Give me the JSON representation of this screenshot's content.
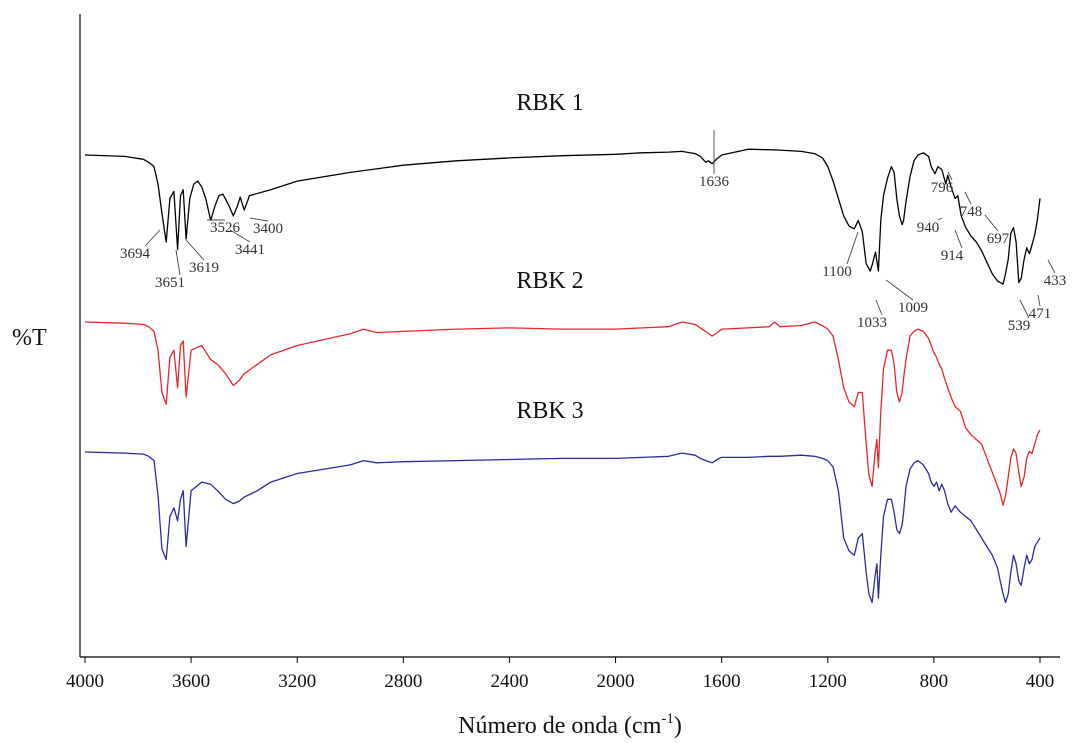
{
  "chart_data": {
    "type": "line",
    "title": "",
    "xlabel": "Número de onda (cm",
    "xlabel_sup": "-1",
    "xlabel_end": ")",
    "ylabel": "%T",
    "xlim": [
      4000,
      400
    ],
    "x_reversed": true,
    "grid": false,
    "x_ticks": [
      4000,
      3600,
      3200,
      2800,
      2400,
      2000,
      1600,
      1200,
      800,
      400
    ],
    "series": [
      {
        "name": "RBK 1",
        "color": "#000000",
        "x": [
          4000,
          3850,
          3780,
          3760,
          3740,
          3725,
          3710,
          3694,
          3680,
          3665,
          3651,
          3640,
          3630,
          3619,
          3605,
          3590,
          3575,
          3560,
          3545,
          3526,
          3510,
          3495,
          3480,
          3460,
          3441,
          3425,
          3415,
          3400,
          3380,
          3300,
          3200,
          3000,
          2800,
          2600,
          2400,
          2200,
          2000,
          1900,
          1800,
          1750,
          1700,
          1680,
          1660,
          1650,
          1636,
          1620,
          1600,
          1500,
          1400,
          1300,
          1250,
          1220,
          1200,
          1180,
          1160,
          1140,
          1120,
          1110,
          1100,
          1085,
          1070,
          1055,
          1040,
          1033,
          1020,
          1009,
          1000,
          990,
          975,
          960,
          950,
          940,
          930,
          920,
          914,
          905,
          890,
          875,
          860,
          840,
          820,
          810,
          796,
          785,
          770,
          755,
          748,
          735,
          720,
          710,
          697,
          680,
          660,
          640,
          620,
          600,
          580,
          560,
          550,
          539,
          530,
          520,
          510,
          500,
          490,
          480,
          471,
          460,
          450,
          440,
          433,
          420,
          410,
          400
        ],
        "y": [
          100,
          99,
          97,
          95,
          92,
          80,
          60,
          40,
          70,
          75,
          35,
          72,
          76,
          42,
          70,
          80,
          82,
          78,
          70,
          55,
          65,
          72,
          73,
          66,
          58,
          65,
          71,
          62,
          72,
          76,
          82,
          88,
          93,
          96,
          98,
          99.5,
          100.5,
          101.5,
          102,
          102.5,
          101,
          99,
          95,
          96,
          94,
          97,
          100,
          104,
          103.5,
          102.5,
          101,
          98,
          92,
          82,
          70,
          58,
          51,
          50,
          49,
          55,
          47,
          25,
          20,
          24,
          33,
          20,
          55,
          72,
          84,
          92,
          88,
          70,
          58,
          52,
          55,
          68,
          85,
          96,
          100,
          101.5,
          99,
          92,
          87,
          92,
          90,
          80,
          86,
          78,
          70,
          72,
          58,
          50,
          44,
          40,
          34,
          26,
          18,
          13,
          12,
          11,
          18,
          28,
          46,
          50,
          40,
          12,
          15,
          28,
          36,
          32,
          36,
          45,
          55,
          70
        ]
      },
      {
        "name": "RBK 2",
        "color": "#e8262a",
        "x": [
          4000,
          3850,
          3780,
          3760,
          3740,
          3725,
          3710,
          3694,
          3680,
          3665,
          3651,
          3640,
          3630,
          3619,
          3600,
          3560,
          3526,
          3500,
          3470,
          3441,
          3420,
          3400,
          3350,
          3300,
          3200,
          3000,
          2950,
          2900,
          2800,
          2600,
          2400,
          2200,
          2000,
          1900,
          1800,
          1750,
          1700,
          1680,
          1660,
          1636,
          1610,
          1600,
          1500,
          1420,
          1400,
          1380,
          1300,
          1250,
          1220,
          1200,
          1180,
          1160,
          1140,
          1120,
          1100,
          1085,
          1070,
          1055,
          1045,
          1033,
          1022,
          1015,
          1009,
          1000,
          990,
          975,
          960,
          950,
          940,
          930,
          920,
          914,
          905,
          890,
          875,
          860,
          840,
          820,
          810,
          800,
          790,
          780,
          770,
          760,
          748,
          735,
          720,
          700,
          680,
          660,
          640,
          620,
          600,
          580,
          560,
          550,
          539,
          530,
          520,
          510,
          500,
          490,
          480,
          471,
          460,
          450,
          440,
          430,
          420,
          410,
          400
        ],
        "y": [
          100,
          99.5,
          99,
          98,
          96,
          88,
          70,
          65,
          85,
          88,
          72,
          90,
          92,
          68,
          88,
          90,
          84,
          82,
          78,
          73,
          75,
          78,
          82,
          86,
          90,
          95,
          97,
          95.5,
          96,
          97,
          97.5,
          97,
          97,
          97.5,
          98,
          100,
          99,
          97.5,
          96,
          94,
          96,
          97,
          97.5,
          98,
          100,
          98,
          98.5,
          100,
          98.5,
          97,
          94,
          84,
          72,
          66,
          64,
          70,
          70,
          48,
          35,
          30,
          44,
          50,
          38,
          62,
          80,
          88,
          88,
          82,
          70,
          66,
          70,
          76,
          84,
          94,
          96,
          97,
          96,
          93,
          90,
          87,
          85,
          82,
          80,
          76,
          72,
          68,
          64,
          62,
          55,
          52,
          50,
          48,
          42,
          36,
          30,
          27,
          22,
          26,
          34,
          42,
          46,
          44,
          36,
          30,
          34,
          42,
          45,
          44,
          48,
          52,
          54
        ]
      },
      {
        "name": "RBK 3",
        "color": "#2b2b9c",
        "x": [
          4000,
          3850,
          3780,
          3760,
          3740,
          3725,
          3710,
          3694,
          3680,
          3665,
          3651,
          3640,
          3630,
          3619,
          3600,
          3560,
          3526,
          3500,
          3470,
          3441,
          3420,
          3400,
          3350,
          3300,
          3200,
          3000,
          2950,
          2900,
          2800,
          2600,
          2400,
          2200,
          2000,
          1900,
          1800,
          1750,
          1700,
          1680,
          1660,
          1636,
          1610,
          1600,
          1500,
          1420,
          1400,
          1380,
          1300,
          1250,
          1220,
          1200,
          1180,
          1160,
          1140,
          1120,
          1100,
          1085,
          1070,
          1055,
          1045,
          1033,
          1022,
          1015,
          1009,
          1000,
          990,
          975,
          960,
          950,
          940,
          930,
          920,
          914,
          905,
          890,
          875,
          860,
          840,
          820,
          810,
          800,
          790,
          780,
          770,
          760,
          748,
          735,
          720,
          700,
          680,
          660,
          640,
          620,
          600,
          580,
          560,
          550,
          539,
          530,
          520,
          510,
          500,
          490,
          480,
          471,
          460,
          450,
          440,
          430,
          420,
          410,
          400
        ],
        "y": [
          100,
          99.5,
          99,
          98,
          96,
          80,
          55,
          50,
          70,
          74,
          68,
          78,
          82,
          56,
          82,
          86,
          85,
          82,
          78,
          76,
          77,
          79,
          82,
          86,
          90,
          94,
          96,
          95,
          95.5,
          96,
          96.5,
          97,
          97,
          97.5,
          98,
          99.5,
          98.5,
          97,
          96,
          95,
          97,
          97.5,
          97.5,
          98,
          98,
          98,
          98.5,
          98,
          97,
          96,
          93,
          82,
          60,
          54,
          52,
          60,
          62,
          44,
          34,
          30,
          42,
          48,
          32,
          52,
          70,
          78,
          78,
          72,
          64,
          62,
          66,
          72,
          84,
          92,
          95,
          96,
          94,
          90,
          86,
          84,
          86,
          82,
          85,
          82,
          76,
          72,
          75,
          72,
          70,
          68,
          64,
          60,
          56,
          52,
          46,
          40,
          34,
          30,
          34,
          44,
          52,
          48,
          40,
          38,
          46,
          52,
          48,
          50,
          56,
          58,
          60
        ]
      }
    ],
    "series_labels": [
      {
        "text": "RBK 1",
        "x": 2150,
        "series": 0,
        "dy": 0
      },
      {
        "text": "RBK 2",
        "x": 2150,
        "series": 1,
        "dy": 0
      },
      {
        "text": "RBK 3",
        "x": 2150,
        "series": 2,
        "dy": 0
      }
    ],
    "peak_labels": [
      {
        "text": "3694",
        "x": 3694
      },
      {
        "text": "3651",
        "x": 3651
      },
      {
        "text": "3619",
        "x": 3619
      },
      {
        "text": "3526",
        "x": 3526
      },
      {
        "text": "3441",
        "x": 3441
      },
      {
        "text": "3400",
        "x": 3400
      },
      {
        "text": "1636",
        "x": 1636
      },
      {
        "text": "1100",
        "x": 1100
      },
      {
        "text": "1033",
        "x": 1033
      },
      {
        "text": "1009",
        "x": 1009
      },
      {
        "text": "940",
        "x": 940
      },
      {
        "text": "914",
        "x": 914
      },
      {
        "text": "796",
        "x": 796
      },
      {
        "text": "748",
        "x": 748
      },
      {
        "text": "697",
        "x": 697
      },
      {
        "text": "539",
        "x": 539
      },
      {
        "text": "471",
        "x": 471
      },
      {
        "text": "433",
        "x": 433
      }
    ]
  }
}
